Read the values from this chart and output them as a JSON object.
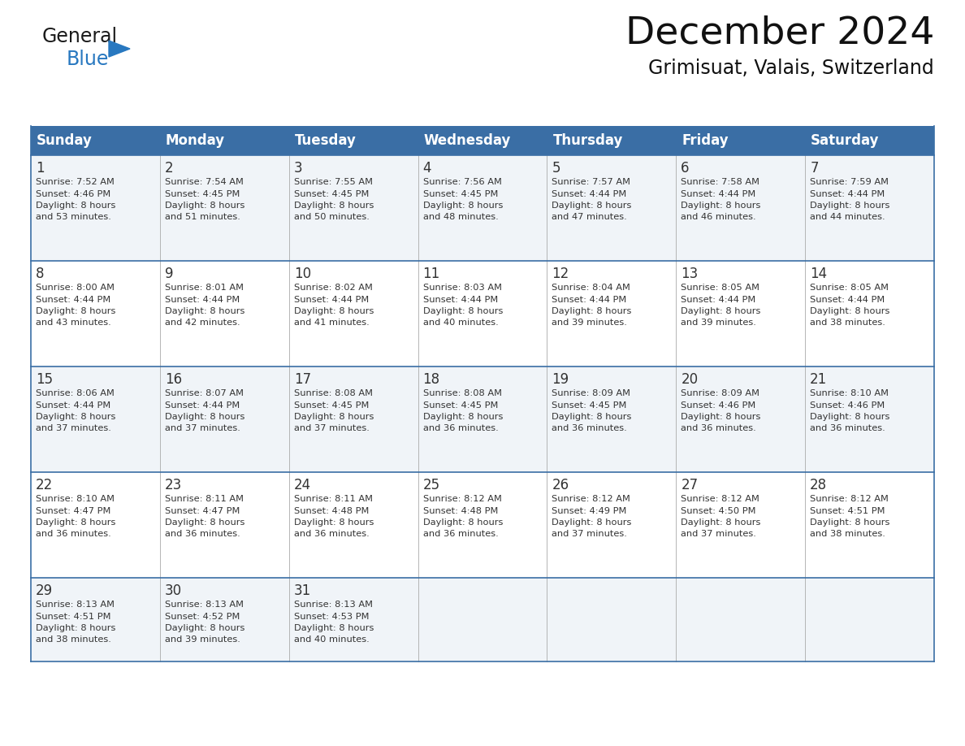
{
  "title": "December 2024",
  "subtitle": "Grimisuat, Valais, Switzerland",
  "header_color": "#3a6ea5",
  "header_text_color": "#ffffff",
  "row_bg_even": "#f0f4f8",
  "row_bg_odd": "#ffffff",
  "border_color": "#3a6ea5",
  "divider_color": "#aaaaaa",
  "text_color": "#333333",
  "days_of_week": [
    "Sunday",
    "Monday",
    "Tuesday",
    "Wednesday",
    "Thursday",
    "Friday",
    "Saturday"
  ],
  "weeks": [
    [
      {
        "day": "1",
        "sunrise": "7:52 AM",
        "sunset": "4:46 PM",
        "daylight_line1": "Daylight: 8 hours",
        "daylight_line2": "and 53 minutes."
      },
      {
        "day": "2",
        "sunrise": "7:54 AM",
        "sunset": "4:45 PM",
        "daylight_line1": "Daylight: 8 hours",
        "daylight_line2": "and 51 minutes."
      },
      {
        "day": "3",
        "sunrise": "7:55 AM",
        "sunset": "4:45 PM",
        "daylight_line1": "Daylight: 8 hours",
        "daylight_line2": "and 50 minutes."
      },
      {
        "day": "4",
        "sunrise": "7:56 AM",
        "sunset": "4:45 PM",
        "daylight_line1": "Daylight: 8 hours",
        "daylight_line2": "and 48 minutes."
      },
      {
        "day": "5",
        "sunrise": "7:57 AM",
        "sunset": "4:44 PM",
        "daylight_line1": "Daylight: 8 hours",
        "daylight_line2": "and 47 minutes."
      },
      {
        "day": "6",
        "sunrise": "7:58 AM",
        "sunset": "4:44 PM",
        "daylight_line1": "Daylight: 8 hours",
        "daylight_line2": "and 46 minutes."
      },
      {
        "day": "7",
        "sunrise": "7:59 AM",
        "sunset": "4:44 PM",
        "daylight_line1": "Daylight: 8 hours",
        "daylight_line2": "and 44 minutes."
      }
    ],
    [
      {
        "day": "8",
        "sunrise": "8:00 AM",
        "sunset": "4:44 PM",
        "daylight_line1": "Daylight: 8 hours",
        "daylight_line2": "and 43 minutes."
      },
      {
        "day": "9",
        "sunrise": "8:01 AM",
        "sunset": "4:44 PM",
        "daylight_line1": "Daylight: 8 hours",
        "daylight_line2": "and 42 minutes."
      },
      {
        "day": "10",
        "sunrise": "8:02 AM",
        "sunset": "4:44 PM",
        "daylight_line1": "Daylight: 8 hours",
        "daylight_line2": "and 41 minutes."
      },
      {
        "day": "11",
        "sunrise": "8:03 AM",
        "sunset": "4:44 PM",
        "daylight_line1": "Daylight: 8 hours",
        "daylight_line2": "and 40 minutes."
      },
      {
        "day": "12",
        "sunrise": "8:04 AM",
        "sunset": "4:44 PM",
        "daylight_line1": "Daylight: 8 hours",
        "daylight_line2": "and 39 minutes."
      },
      {
        "day": "13",
        "sunrise": "8:05 AM",
        "sunset": "4:44 PM",
        "daylight_line1": "Daylight: 8 hours",
        "daylight_line2": "and 39 minutes."
      },
      {
        "day": "14",
        "sunrise": "8:05 AM",
        "sunset": "4:44 PM",
        "daylight_line1": "Daylight: 8 hours",
        "daylight_line2": "and 38 minutes."
      }
    ],
    [
      {
        "day": "15",
        "sunrise": "8:06 AM",
        "sunset": "4:44 PM",
        "daylight_line1": "Daylight: 8 hours",
        "daylight_line2": "and 37 minutes."
      },
      {
        "day": "16",
        "sunrise": "8:07 AM",
        "sunset": "4:44 PM",
        "daylight_line1": "Daylight: 8 hours",
        "daylight_line2": "and 37 minutes."
      },
      {
        "day": "17",
        "sunrise": "8:08 AM",
        "sunset": "4:45 PM",
        "daylight_line1": "Daylight: 8 hours",
        "daylight_line2": "and 37 minutes."
      },
      {
        "day": "18",
        "sunrise": "8:08 AM",
        "sunset": "4:45 PM",
        "daylight_line1": "Daylight: 8 hours",
        "daylight_line2": "and 36 minutes."
      },
      {
        "day": "19",
        "sunrise": "8:09 AM",
        "sunset": "4:45 PM",
        "daylight_line1": "Daylight: 8 hours",
        "daylight_line2": "and 36 minutes."
      },
      {
        "day": "20",
        "sunrise": "8:09 AM",
        "sunset": "4:46 PM",
        "daylight_line1": "Daylight: 8 hours",
        "daylight_line2": "and 36 minutes."
      },
      {
        "day": "21",
        "sunrise": "8:10 AM",
        "sunset": "4:46 PM",
        "daylight_line1": "Daylight: 8 hours",
        "daylight_line2": "and 36 minutes."
      }
    ],
    [
      {
        "day": "22",
        "sunrise": "8:10 AM",
        "sunset": "4:47 PM",
        "daylight_line1": "Daylight: 8 hours",
        "daylight_line2": "and 36 minutes."
      },
      {
        "day": "23",
        "sunrise": "8:11 AM",
        "sunset": "4:47 PM",
        "daylight_line1": "Daylight: 8 hours",
        "daylight_line2": "and 36 minutes."
      },
      {
        "day": "24",
        "sunrise": "8:11 AM",
        "sunset": "4:48 PM",
        "daylight_line1": "Daylight: 8 hours",
        "daylight_line2": "and 36 minutes."
      },
      {
        "day": "25",
        "sunrise": "8:12 AM",
        "sunset": "4:48 PM",
        "daylight_line1": "Daylight: 8 hours",
        "daylight_line2": "and 36 minutes."
      },
      {
        "day": "26",
        "sunrise": "8:12 AM",
        "sunset": "4:49 PM",
        "daylight_line1": "Daylight: 8 hours",
        "daylight_line2": "and 37 minutes."
      },
      {
        "day": "27",
        "sunrise": "8:12 AM",
        "sunset": "4:50 PM",
        "daylight_line1": "Daylight: 8 hours",
        "daylight_line2": "and 37 minutes."
      },
      {
        "day": "28",
        "sunrise": "8:12 AM",
        "sunset": "4:51 PM",
        "daylight_line1": "Daylight: 8 hours",
        "daylight_line2": "and 38 minutes."
      }
    ],
    [
      {
        "day": "29",
        "sunrise": "8:13 AM",
        "sunset": "4:51 PM",
        "daylight_line1": "Daylight: 8 hours",
        "daylight_line2": "and 38 minutes."
      },
      {
        "day": "30",
        "sunrise": "8:13 AM",
        "sunset": "4:52 PM",
        "daylight_line1": "Daylight: 8 hours",
        "daylight_line2": "and 39 minutes."
      },
      {
        "day": "31",
        "sunrise": "8:13 AM",
        "sunset": "4:53 PM",
        "daylight_line1": "Daylight: 8 hours",
        "daylight_line2": "and 40 minutes."
      },
      null,
      null,
      null,
      null
    ]
  ],
  "logo_general_color": "#1a1a1a",
  "logo_blue_color": "#2878c0",
  "logo_triangle_color": "#2878c0",
  "fig_width": 11.88,
  "fig_height": 9.18,
  "dpi": 100
}
